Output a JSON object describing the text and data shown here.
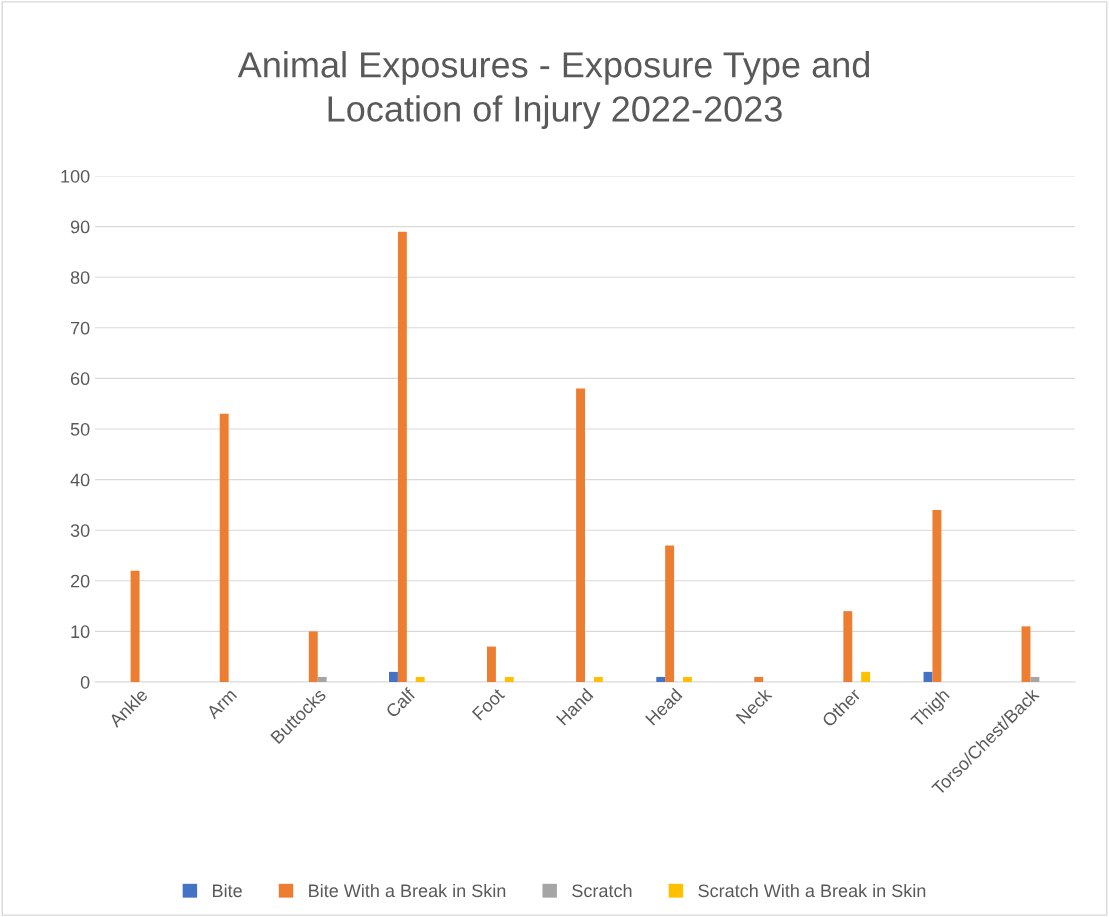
{
  "chart_data": {
    "type": "bar",
    "title": "Animal Exposures - Exposure Type and\nLocation of Injury 2022-2023",
    "categories": [
      "Ankle",
      "Arm",
      "Buttocks",
      "Calf",
      "Foot",
      "Hand",
      "Head",
      "Neck",
      "Other",
      "Thigh",
      "Torso/Chest/Back"
    ],
    "series": [
      {
        "name": "Bite",
        "color": "#4472c4",
        "values": [
          0,
          0,
          0,
          2,
          0,
          0,
          1,
          0,
          0,
          2,
          0
        ]
      },
      {
        "name": "Bite With a Break in Skin",
        "color": "#ed7d31",
        "values": [
          22,
          53,
          10,
          89,
          7,
          58,
          27,
          1,
          14,
          34,
          11
        ]
      },
      {
        "name": "Scratch",
        "color": "#a5a5a5",
        "values": [
          0,
          0,
          1,
          0,
          0,
          0,
          0,
          0,
          0,
          0,
          1
        ]
      },
      {
        "name": "Scratch With a Break in Skin",
        "color": "#ffc000",
        "values": [
          0,
          0,
          0,
          1,
          1,
          1,
          1,
          0,
          2,
          0,
          0
        ]
      }
    ],
    "ylim": [
      0,
      100
    ],
    "yticks": [
      0,
      10,
      20,
      30,
      40,
      50,
      60,
      70,
      80,
      90,
      100
    ],
    "grid": "y",
    "legend": "bottom"
  }
}
